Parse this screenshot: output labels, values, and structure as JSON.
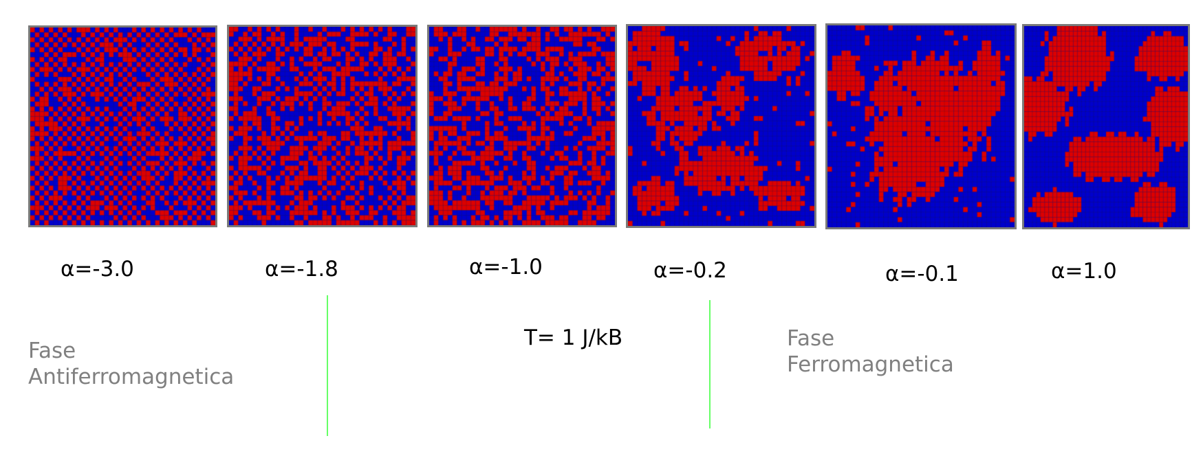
{
  "panels": [
    {
      "alpha_label": "α=-3.0",
      "pattern": "checkerboard",
      "disorder": 0.08
    },
    {
      "alpha_label": "α=-1.8",
      "pattern": "checkerboard",
      "disorder": 0.3
    },
    {
      "alpha_label": "α=-1.0",
      "pattern": "random",
      "disorder": 0.55
    },
    {
      "alpha_label": "α=-0.2",
      "pattern": "domains",
      "disorder": 0.15
    },
    {
      "alpha_label": "α=-0.1",
      "pattern": "domains",
      "disorder": 0.1
    },
    {
      "alpha_label": "α=1.0",
      "pattern": "domains",
      "disorder": 0.0
    }
  ],
  "temperature_label": "T= 1 J/kB",
  "phases": {
    "antiferro": [
      "Fase",
      "Antiferromagnetica"
    ],
    "ferro": [
      "Fase",
      "Ferromagnetica"
    ]
  },
  "colors": {
    "spin_up": "#dd0000",
    "spin_down": "#0000cc",
    "grid_line": "#222222",
    "panel_border": "#7a7a7a",
    "boundary_line": "#66ff66",
    "phase_text": "#808080"
  }
}
